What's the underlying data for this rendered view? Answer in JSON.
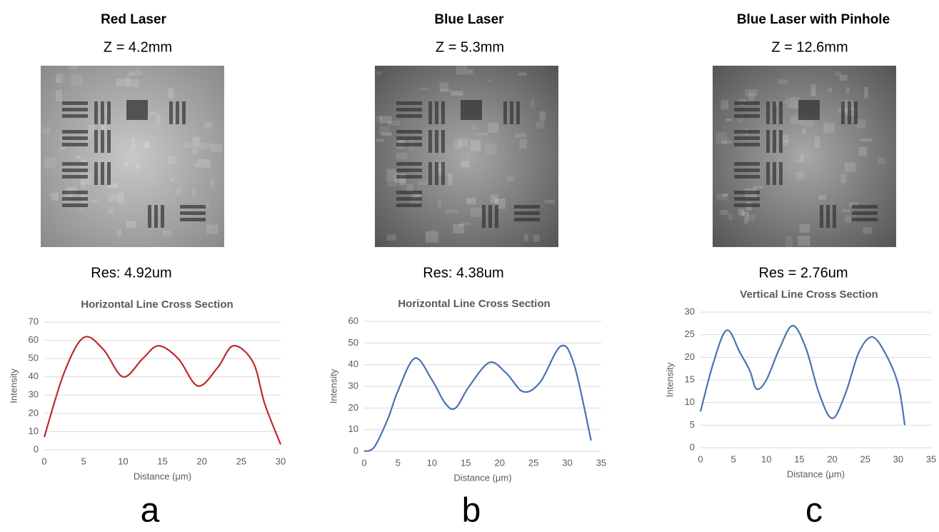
{
  "panels": [
    {
      "title": "Red Laser",
      "z": "Z = 4.2mm",
      "res": "Res: 4.92um",
      "letter": "a"
    },
    {
      "title": "Blue Laser",
      "z": "Z = 5.3mm",
      "res": "Res: 4.38um",
      "letter": "b"
    },
    {
      "title": "Blue Laser with Pinhole",
      "z": "Z = 12.6mm",
      "res": "Res = 2.76um",
      "letter": "c"
    }
  ],
  "chart_data": [
    {
      "type": "line",
      "title": "Horizontal Line Cross Section",
      "xlabel": "Distance (μm)",
      "ylabel": "Intensity",
      "color": "#c0282b",
      "x": [
        0,
        2.5,
        5,
        7.5,
        10,
        12.5,
        14.5,
        17,
        19.5,
        22,
        24,
        26.5,
        28,
        30
      ],
      "values": [
        7,
        42,
        61.5,
        55,
        40,
        50,
        57,
        50,
        35,
        45,
        57,
        48,
        25,
        3
      ],
      "xlim": [
        0,
        30
      ],
      "xticks": [
        0,
        5,
        10,
        15,
        20,
        25,
        30
      ],
      "ylim": [
        0,
        70
      ],
      "yticks": [
        0,
        10,
        20,
        30,
        40,
        50,
        60,
        70
      ],
      "grid": true
    },
    {
      "type": "line",
      "title": "Horizontal Line Cross Section",
      "xlabel": "Distance (μm)",
      "ylabel": "Intensity",
      "color": "#4a72b0",
      "x": [
        0,
        1.5,
        3.5,
        5,
        7.5,
        10,
        12,
        13.5,
        15.5,
        18.5,
        21,
        23.5,
        26,
        29,
        31,
        33.5
      ],
      "values": [
        0,
        2,
        15,
        28,
        43,
        33,
        22,
        20,
        30,
        41,
        36,
        27.5,
        32,
        48.5,
        40,
        5
      ],
      "xlim": [
        0,
        35
      ],
      "xticks": [
        0,
        5,
        10,
        15,
        20,
        25,
        30,
        35
      ],
      "ylim": [
        0,
        60
      ],
      "yticks": [
        0,
        10,
        20,
        30,
        40,
        50,
        60
      ],
      "grid": true
    },
    {
      "type": "line",
      "title": "Vertical Line Cross Section",
      "xlabel": "Distance (μm)",
      "ylabel": "Intensity",
      "color": "#4a72b0",
      "x": [
        0,
        2,
        4,
        6,
        7.5,
        8.5,
        10,
        12,
        14,
        16,
        18,
        20,
        22,
        24,
        26,
        28,
        30,
        31
      ],
      "values": [
        8,
        19,
        26,
        21,
        17,
        13,
        15,
        22,
        27,
        22,
        12,
        6.5,
        12,
        21,
        24.5,
        21,
        14,
        5
      ],
      "xlim": [
        0,
        35
      ],
      "xticks": [
        0,
        5,
        10,
        15,
        20,
        25,
        30,
        35
      ],
      "ylim": [
        0,
        30
      ],
      "yticks": [
        0,
        5,
        10,
        15,
        20,
        25,
        30
      ],
      "grid": true
    }
  ]
}
